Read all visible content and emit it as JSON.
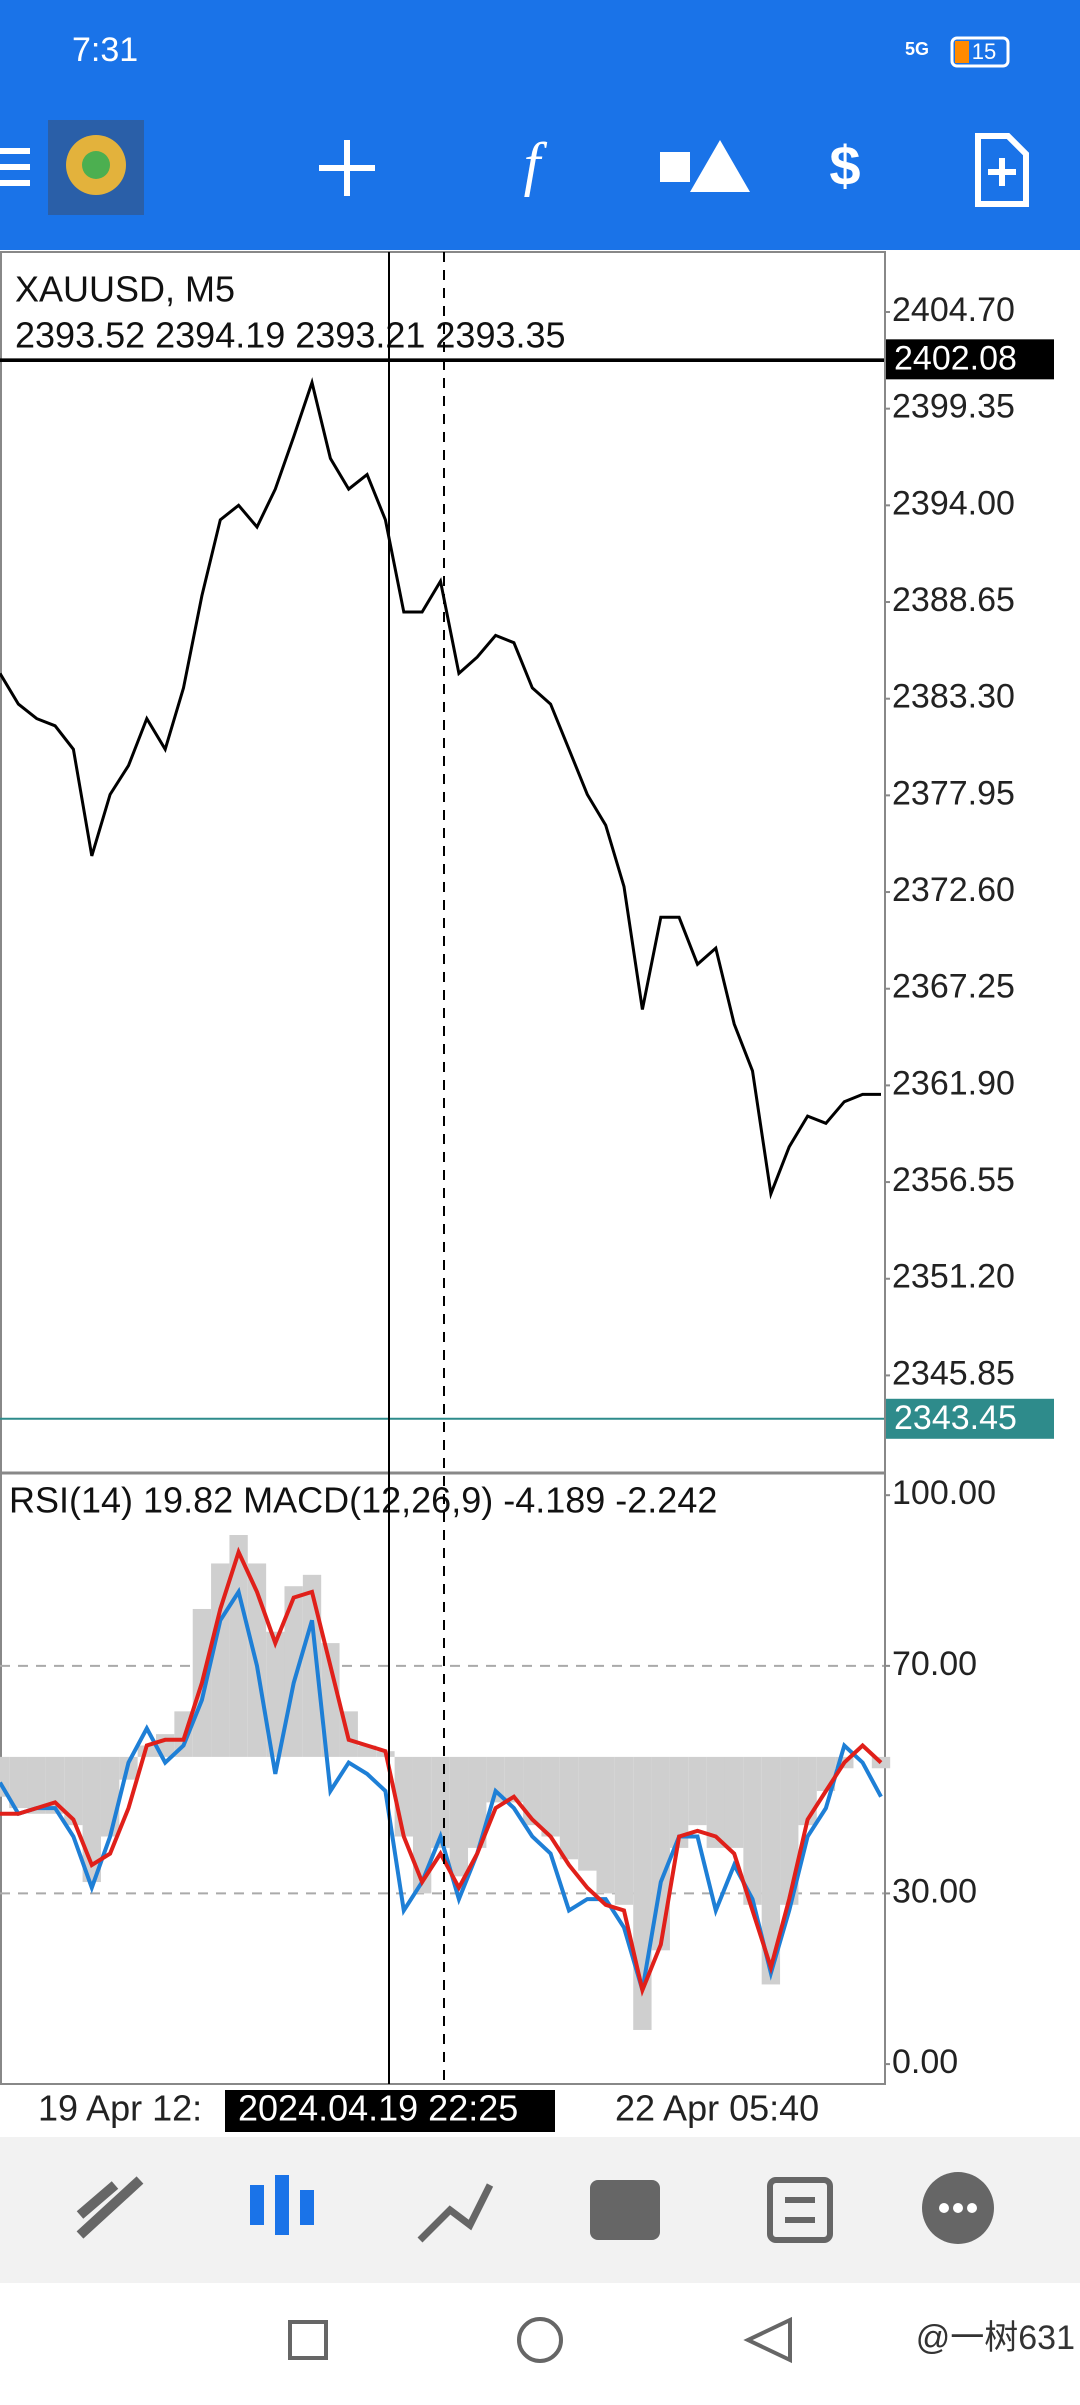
{
  "status_bar": {
    "time": "7:31",
    "battery": "15",
    "network": "5G"
  },
  "chart_data": [
    {
      "type": "line",
      "title": "XAUUSD, M5",
      "subtitle": "2393.52 2394.19 2393.21 2393.35",
      "color": "#000000",
      "values": [
        2384.7,
        2383.0,
        2382.2,
        2381.8,
        2380.5,
        2374.6,
        2378.0,
        2379.6,
        2382.2,
        2380.5,
        2383.9,
        2389.0,
        2393.2,
        2394.0,
        2392.8,
        2394.9,
        2397.8,
        2400.8,
        2396.6,
        2394.9,
        2395.7,
        2393.2,
        2388.1,
        2388.1,
        2389.8,
        2384.7,
        2385.6,
        2386.8,
        2386.4,
        2383.9,
        2383.0,
        2380.5,
        2378.0,
        2376.3,
        2372.9,
        2366.1,
        2371.2,
        2371.2,
        2368.6,
        2369.5,
        2365.3,
        2362.7,
        2355.9,
        2358.5,
        2360.2,
        2359.8,
        2361.0,
        2361.4,
        2361.4
      ],
      "ylim": [
        2340.45,
        2408.02
      ],
      "yticks": [
        {
          "value": 2404.7,
          "label": "2404.70"
        },
        {
          "value": 2399.35,
          "label": "2399.35"
        },
        {
          "value": 2394.0,
          "label": "2394.00"
        },
        {
          "value": 2388.65,
          "label": "2388.65"
        },
        {
          "value": 2383.3,
          "label": "2383.30"
        },
        {
          "value": 2377.95,
          "label": "2377.95"
        },
        {
          "value": 2372.6,
          "label": "2372.60"
        },
        {
          "value": 2367.25,
          "label": "2367.25"
        },
        {
          "value": 2361.9,
          "label": "2361.90"
        },
        {
          "value": 2356.55,
          "label": "2356.55"
        },
        {
          "value": 2351.2,
          "label": "2351.20"
        },
        {
          "value": 2345.85,
          "label": "2345.85"
        }
      ],
      "price_labels": [
        {
          "value": 2402.08,
          "label": "2402.08",
          "color": "#000000"
        },
        {
          "value": 2343.45,
          "label": "2343.45",
          "color": "#2e8b8b"
        }
      ]
    },
    {
      "type": "line",
      "title": "RSI(14) 19.82 MACD(12,26,9) -4.189 -2.242",
      "ylim": [
        -3.5,
        103.9
      ],
      "yticks": [
        {
          "value": 100,
          "label": "100.00"
        },
        {
          "value": 70,
          "label": "70.00"
        },
        {
          "value": 30,
          "label": "30.00"
        },
        {
          "value": 0,
          "label": "0.00"
        }
      ],
      "levels": [
        70,
        30
      ],
      "baseline": 54,
      "series": [
        {
          "type": "bar",
          "color": "#cfcfcf",
          "values": [
            47,
            45,
            44,
            44,
            42,
            32,
            40,
            50,
            56,
            58,
            62,
            80,
            88,
            93,
            88,
            76,
            84,
            86,
            74,
            62,
            56,
            55,
            40,
            30,
            38,
            33,
            38,
            46,
            46,
            42,
            40,
            36,
            34,
            30,
            28,
            6,
            20,
            38,
            42,
            38,
            38,
            28,
            14,
            28,
            42,
            48,
            52,
            54,
            52
          ]
        },
        {
          "type": "line",
          "color": "#1e7fd6",
          "values": [
            49.5,
            44,
            45,
            45,
            40,
            31,
            40,
            53,
            59,
            53,
            56,
            64,
            78,
            83,
            70,
            51,
            67,
            78,
            48,
            53,
            51,
            48,
            27,
            32,
            40,
            29,
            37,
            48,
            45,
            40,
            37,
            27,
            29,
            29,
            24,
            13,
            32,
            40,
            40,
            27,
            35,
            29,
            16,
            27,
            40,
            45,
            56,
            53,
            47
          ]
        },
        {
          "type": "line",
          "color": "#e0201a",
          "values": [
            44,
            44,
            45,
            46,
            43,
            35,
            37,
            45,
            56,
            57,
            57,
            67,
            80,
            90,
            83,
            74,
            82,
            83,
            70,
            57,
            56,
            55,
            40,
            32,
            37,
            31,
            37,
            45,
            47,
            43,
            40,
            35,
            31,
            28,
            27,
            13,
            21,
            40,
            41,
            40,
            37,
            27,
            17,
            29,
            43,
            48,
            53,
            56,
            53
          ]
        }
      ],
      "x_labels": [
        "19 Apr 12:",
        "2024.04.19 22:25",
        "22 Apr 05:40"
      ]
    }
  ],
  "watermark": "@一树631"
}
